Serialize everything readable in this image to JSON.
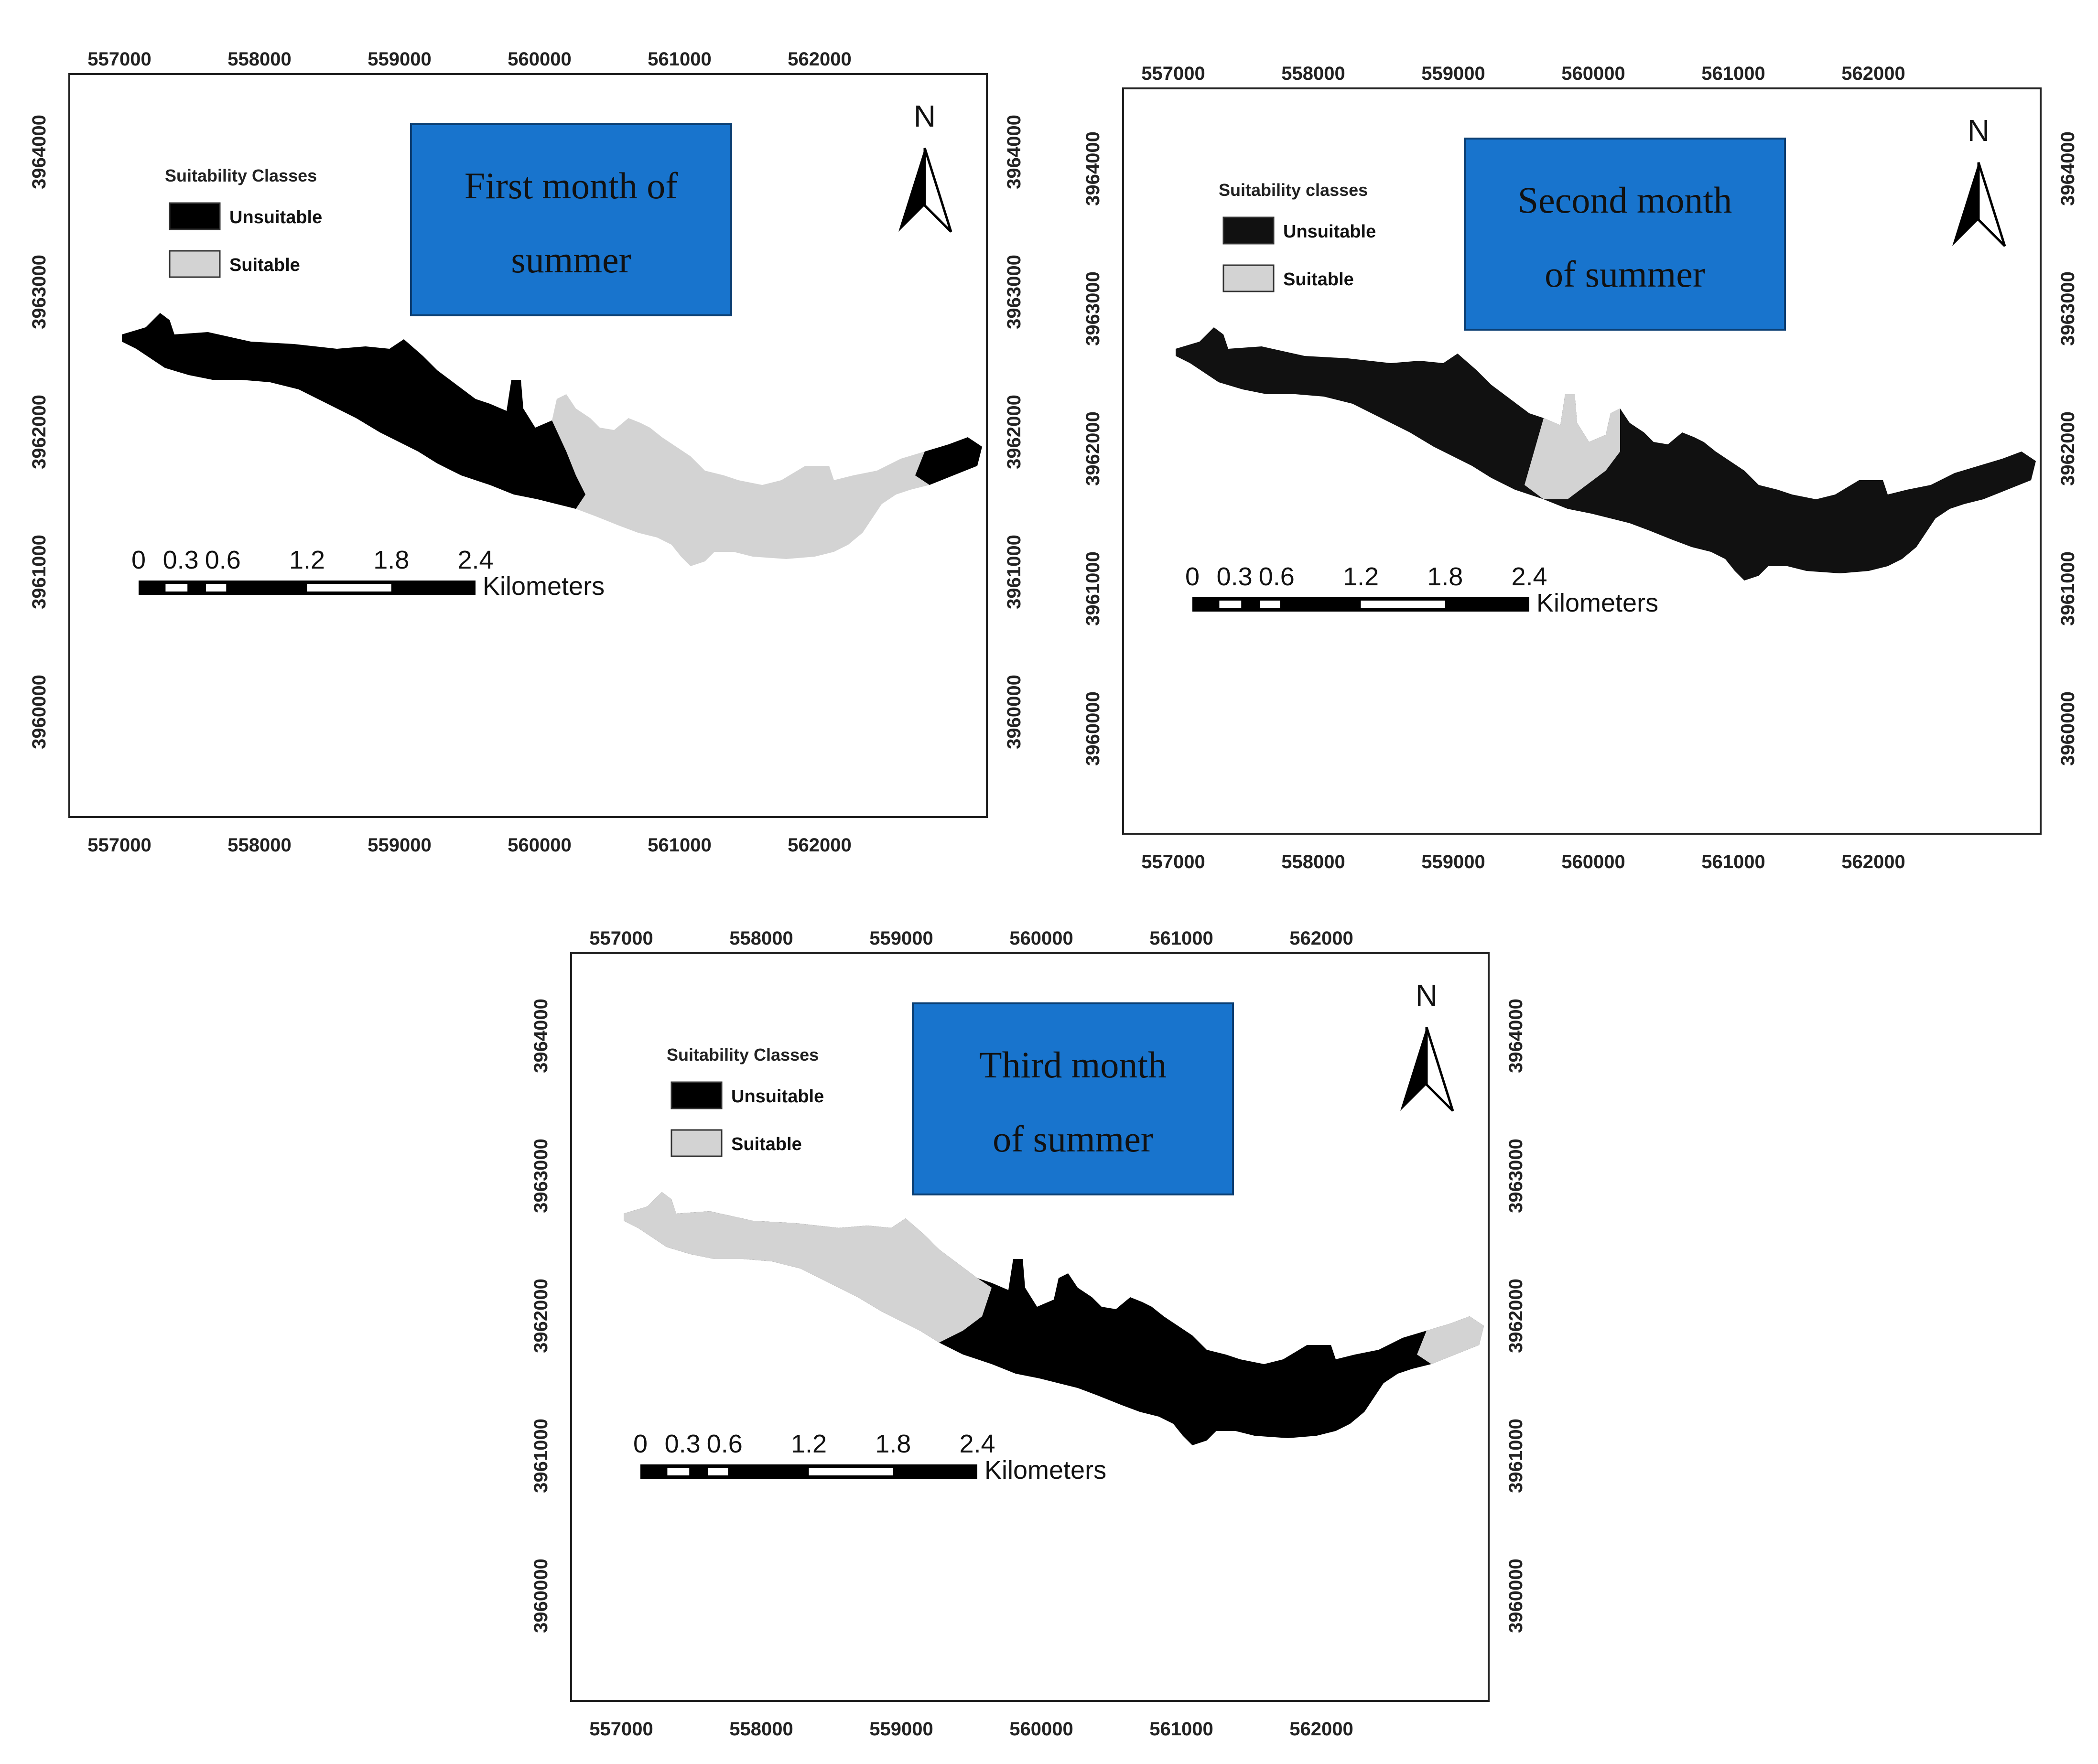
{
  "figure": {
    "panels": [
      {
        "id": "panel-1",
        "title_lines": [
          "First month of",
          "summer"
        ],
        "legend": {
          "heading": "Suitability Classes",
          "items": [
            {
              "label": "Unsuitable",
              "color": "#000000"
            },
            {
              "label": "Suitable",
              "color": "#d3d3d3"
            }
          ]
        }
      },
      {
        "id": "panel-2",
        "title_lines": [
          "Second month",
          "of summer"
        ],
        "legend": {
          "heading": "Suitability classes",
          "items": [
            {
              "label": "Unsuitable",
              "color": "#111111"
            },
            {
              "label": "Suitable",
              "color": "#d3d3d3"
            }
          ]
        }
      },
      {
        "id": "panel-3",
        "title_lines": [
          "Third month",
          "of summer"
        ],
        "legend": {
          "heading": "Suitability Classes",
          "items": [
            {
              "label": "Unsuitable",
              "color": "#000000"
            },
            {
              "label": "Suitable",
              "color": "#d3d3d3"
            }
          ]
        }
      }
    ],
    "easting_ticks": [
      "557000",
      "558000",
      "559000",
      "560000",
      "561000",
      "562000"
    ],
    "northing_ticks": [
      "3960000",
      "3961000",
      "3962000",
      "3963000",
      "3964000"
    ],
    "scale_bar": {
      "labels": [
        "0",
        "0.3",
        "0.6",
        "1.2",
        "1.8",
        "2.4"
      ],
      "unit": "Kilometers"
    },
    "north_arrow": "N",
    "title_box_color": "#1874cd",
    "unsuitable_color": "#000000",
    "suitable_color": "#d3d3d3"
  }
}
